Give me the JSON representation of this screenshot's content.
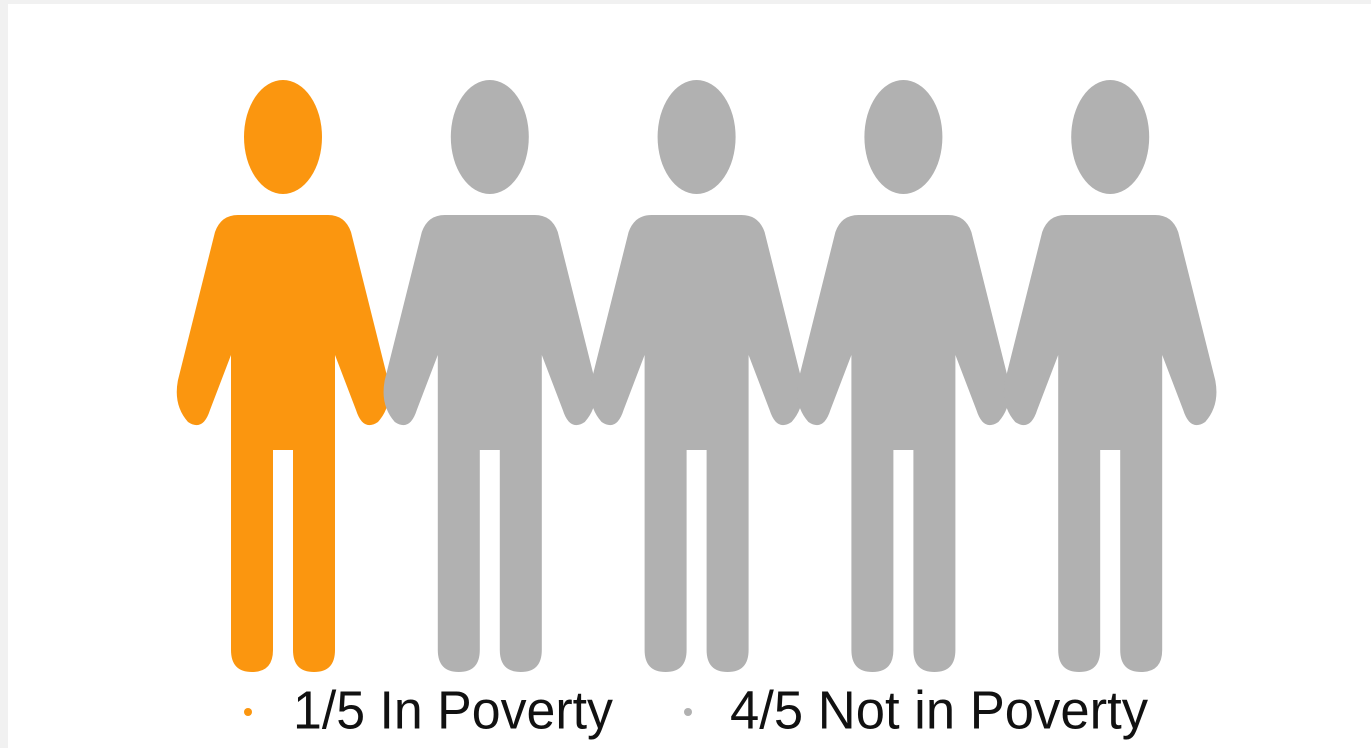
{
  "chart_data": {
    "type": "pictograph",
    "series": [
      {
        "name": "1/5 In Poverty",
        "color": "#fb960f",
        "values": [
          1
        ]
      },
      {
        "name": "4/5 Not in Poverty",
        "color": "#b1b1b1",
        "values": [
          4
        ]
      }
    ]
  }
}
